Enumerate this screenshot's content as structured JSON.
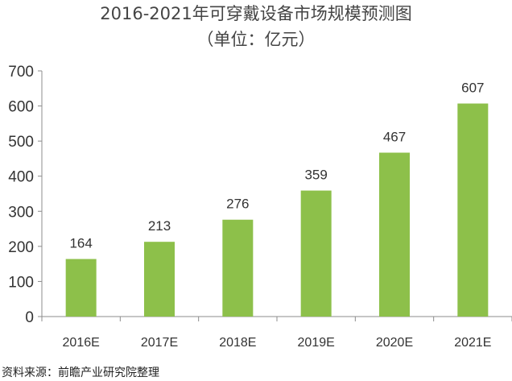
{
  "chart_data": {
    "type": "bar",
    "title": "2016-2021年可穿戴设备市场规模预测图",
    "subtitle": "（单位：亿元）",
    "categories": [
      "2016E",
      "2017E",
      "2018E",
      "2019E",
      "2020E",
      "2021E"
    ],
    "values": [
      164,
      213,
      276,
      359,
      467,
      607
    ],
    "ylim": [
      0,
      700
    ],
    "yticks": [
      0,
      100,
      200,
      300,
      400,
      500,
      600,
      700
    ],
    "grid": false,
    "bar_color": "#8DC04A",
    "axis_color": "#8c8c8c"
  },
  "footer": {
    "source": "资料来源：前瞻产业研究院整理"
  }
}
